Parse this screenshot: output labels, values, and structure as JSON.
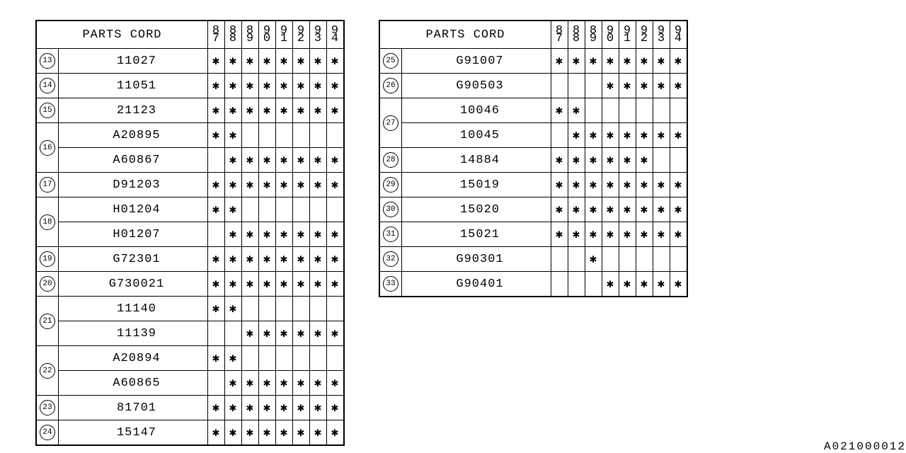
{
  "doc_id": "A021000012",
  "header_label": "PARTS CORD",
  "year_cols": [
    "87",
    "88",
    "89",
    "90",
    "91",
    "92",
    "93",
    "94"
  ],
  "mark": "✱",
  "tables": [
    {
      "rows": [
        {
          "idx": "13",
          "span": 1,
          "code": "11027",
          "flags": [
            1,
            1,
            1,
            1,
            1,
            1,
            1,
            1
          ]
        },
        {
          "idx": "14",
          "span": 1,
          "code": "11051",
          "flags": [
            1,
            1,
            1,
            1,
            1,
            1,
            1,
            1
          ]
        },
        {
          "idx": "15",
          "span": 1,
          "code": "21123",
          "flags": [
            1,
            1,
            1,
            1,
            1,
            1,
            1,
            1
          ]
        },
        {
          "idx": "16",
          "span": 2,
          "code": "A20895",
          "flags": [
            1,
            1,
            0,
            0,
            0,
            0,
            0,
            0
          ]
        },
        {
          "idx": "",
          "span": 0,
          "code": "A60867",
          "flags": [
            0,
            1,
            1,
            1,
            1,
            1,
            1,
            1
          ]
        },
        {
          "idx": "17",
          "span": 1,
          "code": "D91203",
          "flags": [
            1,
            1,
            1,
            1,
            1,
            1,
            1,
            1
          ]
        },
        {
          "idx": "18",
          "span": 2,
          "code": "H01204",
          "flags": [
            1,
            1,
            0,
            0,
            0,
            0,
            0,
            0
          ]
        },
        {
          "idx": "",
          "span": 0,
          "code": "H01207",
          "flags": [
            0,
            1,
            1,
            1,
            1,
            1,
            1,
            1
          ]
        },
        {
          "idx": "19",
          "span": 1,
          "code": "G72301",
          "flags": [
            1,
            1,
            1,
            1,
            1,
            1,
            1,
            1
          ]
        },
        {
          "idx": "20",
          "span": 1,
          "code": "G730021",
          "flags": [
            1,
            1,
            1,
            1,
            1,
            1,
            1,
            1
          ]
        },
        {
          "idx": "21",
          "span": 2,
          "code": "11140",
          "flags": [
            1,
            1,
            0,
            0,
            0,
            0,
            0,
            0
          ]
        },
        {
          "idx": "",
          "span": 0,
          "code": "11139",
          "flags": [
            0,
            0,
            1,
            1,
            1,
            1,
            1,
            1
          ]
        },
        {
          "idx": "22",
          "span": 2,
          "code": "A20894",
          "flags": [
            1,
            1,
            0,
            0,
            0,
            0,
            0,
            0
          ]
        },
        {
          "idx": "",
          "span": 0,
          "code": "A60865",
          "flags": [
            0,
            1,
            1,
            1,
            1,
            1,
            1,
            1
          ]
        },
        {
          "idx": "23",
          "span": 1,
          "code": "81701",
          "flags": [
            1,
            1,
            1,
            1,
            1,
            1,
            1,
            1
          ]
        },
        {
          "idx": "24",
          "span": 1,
          "code": "15147",
          "flags": [
            1,
            1,
            1,
            1,
            1,
            1,
            1,
            1
          ]
        }
      ]
    },
    {
      "rows": [
        {
          "idx": "25",
          "span": 1,
          "code": "G91007",
          "flags": [
            1,
            1,
            1,
            1,
            1,
            1,
            1,
            1
          ]
        },
        {
          "idx": "26",
          "span": 1,
          "code": "G90503",
          "flags": [
            0,
            0,
            0,
            1,
            1,
            1,
            1,
            1
          ]
        },
        {
          "idx": "27",
          "span": 2,
          "code": "10046",
          "flags": [
            1,
            1,
            0,
            0,
            0,
            0,
            0,
            0
          ]
        },
        {
          "idx": "",
          "span": 0,
          "code": "10045",
          "flags": [
            0,
            1,
            1,
            1,
            1,
            1,
            1,
            1
          ]
        },
        {
          "idx": "28",
          "span": 1,
          "code": "14884",
          "flags": [
            1,
            1,
            1,
            1,
            1,
            1,
            0,
            0
          ]
        },
        {
          "idx": "29",
          "span": 1,
          "code": "15019",
          "flags": [
            1,
            1,
            1,
            1,
            1,
            1,
            1,
            1
          ]
        },
        {
          "idx": "30",
          "span": 1,
          "code": "15020",
          "flags": [
            1,
            1,
            1,
            1,
            1,
            1,
            1,
            1
          ]
        },
        {
          "idx": "31",
          "span": 1,
          "code": "15021",
          "flags": [
            1,
            1,
            1,
            1,
            1,
            1,
            1,
            1
          ]
        },
        {
          "idx": "32",
          "span": 1,
          "code": "G90301",
          "flags": [
            0,
            0,
            1,
            0,
            0,
            0,
            0,
            0
          ]
        },
        {
          "idx": "33",
          "span": 1,
          "code": "G90401",
          "flags": [
            0,
            0,
            0,
            1,
            1,
            1,
            1,
            1
          ]
        }
      ]
    }
  ]
}
